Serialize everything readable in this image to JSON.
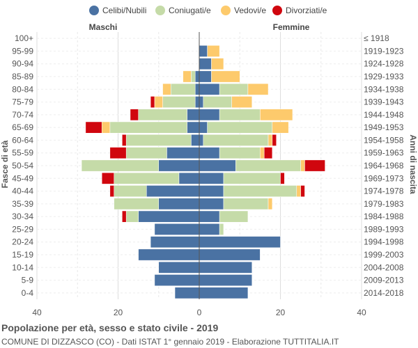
{
  "chart_data": {
    "type": "bar",
    "orientation": "horizontal-population-pyramid",
    "title": "Popolazione per età, sesso e stato civile - 2019",
    "subtitle": "COMUNE DI DIZZASCO (CO) - Dati ISTAT 1° gennaio 2019 - Elaborazione TUTTITALIA.IT",
    "left_label": "Maschi",
    "right_label": "Femmine",
    "ylabel_left": "Fasce di età",
    "ylabel_right": "Anni di nascita",
    "xlim": [
      -40,
      40
    ],
    "xticks": [
      "40",
      "20",
      "0",
      "20",
      "40"
    ],
    "xtick_values": [
      -40,
      -20,
      0,
      20,
      40
    ],
    "grid": true,
    "legend_position": "top",
    "legend": [
      {
        "name": "Celibi/Nubili",
        "color": "#4a72a3"
      },
      {
        "name": "Coniugati/e",
        "color": "#c5dba8"
      },
      {
        "name": "Vedovi/e",
        "color": "#fdca6c"
      },
      {
        "name": "Divorziati/e",
        "color": "#d0060e"
      }
    ],
    "age_groups": [
      "100+",
      "95-99",
      "90-94",
      "85-89",
      "80-84",
      "75-79",
      "70-74",
      "65-69",
      "60-64",
      "55-59",
      "50-54",
      "45-49",
      "40-44",
      "35-39",
      "30-34",
      "25-29",
      "20-24",
      "15-19",
      "10-14",
      "5-9",
      "0-4"
    ],
    "birth_years": [
      "≤ 1918",
      "1919-1923",
      "1924-1928",
      "1929-1933",
      "1934-1938",
      "1939-1943",
      "1944-1948",
      "1949-1953",
      "1954-1958",
      "1959-1963",
      "1964-1968",
      "1969-1973",
      "1974-1978",
      "1979-1983",
      "1984-1988",
      "1989-1993",
      "1994-1998",
      "1999-2003",
      "2004-2008",
      "2009-2013",
      "2014-2018"
    ],
    "males": {
      "celibi": [
        0,
        0,
        0,
        1,
        1,
        1,
        3,
        3,
        2,
        8,
        10,
        5,
        13,
        10,
        15,
        11,
        12,
        15,
        10,
        11,
        6
      ],
      "coniugati": [
        0,
        0,
        0,
        1,
        6,
        8,
        12,
        19,
        16,
        10,
        19,
        16,
        8,
        11,
        3,
        0,
        0,
        0,
        0,
        0,
        0
      ],
      "vedovi": [
        0,
        0,
        0,
        2,
        2,
        2,
        0,
        2,
        0,
        0,
        0,
        0,
        0,
        0,
        0,
        0,
        0,
        0,
        0,
        0,
        0
      ],
      "divorziati": [
        0,
        0,
        0,
        0,
        0,
        1,
        2,
        4,
        1,
        4,
        0,
        3,
        1,
        0,
        1,
        0,
        0,
        0,
        0,
        0,
        0
      ]
    },
    "females": {
      "nubili": [
        0,
        2,
        3,
        3,
        5,
        1,
        5,
        2,
        1,
        5,
        9,
        6,
        6,
        6,
        5,
        5,
        20,
        15,
        13,
        13,
        12
      ],
      "coniugate": [
        0,
        0,
        0,
        0,
        7,
        7,
        10,
        16,
        16,
        10,
        16,
        14,
        18,
        11,
        7,
        1,
        0,
        0,
        0,
        0,
        0
      ],
      "vedove": [
        0,
        3,
        3,
        7,
        5,
        5,
        8,
        4,
        1,
        1,
        1,
        0,
        1,
        1,
        0,
        0,
        0,
        0,
        0,
        0,
        0
      ],
      "divorziate": [
        0,
        0,
        0,
        0,
        0,
        0,
        0,
        0,
        1,
        2,
        5,
        1,
        1,
        0,
        0,
        0,
        0,
        0,
        0,
        0,
        0
      ]
    }
  }
}
